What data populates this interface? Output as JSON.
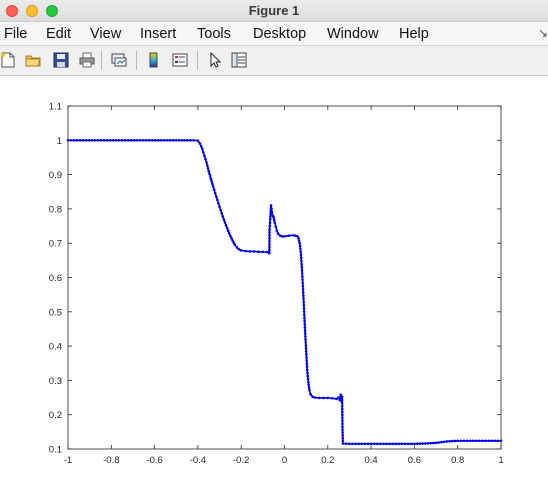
{
  "window": {
    "title": "Figure 1"
  },
  "menu": {
    "items": [
      {
        "id": "file",
        "label": "File"
      },
      {
        "id": "edit",
        "label": "Edit"
      },
      {
        "id": "view",
        "label": "View"
      },
      {
        "id": "insert",
        "label": "Insert"
      },
      {
        "id": "tools",
        "label": "Tools"
      },
      {
        "id": "desktop",
        "label": "Desktop"
      },
      {
        "id": "window",
        "label": "Window"
      },
      {
        "id": "help",
        "label": "Help"
      }
    ]
  },
  "toolbar": {
    "buttons": [
      {
        "id": "new-figure",
        "icon": "new-file-icon"
      },
      {
        "id": "open-file",
        "icon": "folder-icon"
      },
      {
        "id": "save",
        "icon": "save-icon"
      },
      {
        "id": "print",
        "icon": "print-icon"
      },
      {
        "id": "link-plot",
        "icon": "link-plot-icon"
      },
      {
        "id": "insert-colorbar",
        "icon": "colorbar-icon"
      },
      {
        "id": "insert-legend",
        "icon": "legend-icon"
      },
      {
        "id": "edit-plot",
        "icon": "pointer-icon"
      },
      {
        "id": "property-inspector",
        "icon": "property-inspector-icon"
      }
    ]
  },
  "colors": {
    "line": "#0000ee",
    "axes": "#262626",
    "background": "#ffffff"
  },
  "chart_data": {
    "type": "line",
    "title": "",
    "xlabel": "",
    "ylabel": "",
    "xlim": [
      -1,
      1
    ],
    "ylim": [
      0.1,
      1.1
    ],
    "xticks": [
      "-1",
      "-0.8",
      "-0.6",
      "-0.4",
      "-0.2",
      "0",
      "0.2",
      "0.4",
      "0.6",
      "0.8",
      "1"
    ],
    "yticks": [
      "0.1",
      "0.2",
      "0.3",
      "0.4",
      "0.5",
      "0.6",
      "0.7",
      "0.8",
      "0.9",
      "1",
      "1.1"
    ],
    "grid": false,
    "marker": "dot",
    "series": [
      {
        "name": "",
        "points": [
          [
            -1,
            1
          ],
          [
            -0.5,
            1
          ],
          [
            -0.45,
            1
          ],
          [
            -0.42,
            1
          ],
          [
            -0.4,
            0.999
          ],
          [
            -0.39,
            0.99
          ],
          [
            -0.38,
            0.975
          ],
          [
            -0.37,
            0.955
          ],
          [
            -0.36,
            0.935
          ],
          [
            -0.35,
            0.91
          ],
          [
            -0.34,
            0.888
          ],
          [
            -0.33,
            0.866
          ],
          [
            -0.32,
            0.846
          ],
          [
            -0.31,
            0.826
          ],
          [
            -0.3,
            0.806
          ],
          [
            -0.29,
            0.787
          ],
          [
            -0.28,
            0.769
          ],
          [
            -0.27,
            0.752
          ],
          [
            -0.26,
            0.736
          ],
          [
            -0.25,
            0.721
          ],
          [
            -0.24,
            0.708
          ],
          [
            -0.23,
            0.696
          ],
          [
            -0.22,
            0.688
          ],
          [
            -0.21,
            0.682
          ],
          [
            -0.2,
            0.679
          ],
          [
            -0.18,
            0.677
          ],
          [
            -0.16,
            0.676
          ],
          [
            -0.14,
            0.676
          ],
          [
            -0.12,
            0.675
          ],
          [
            -0.1,
            0.675
          ],
          [
            -0.08,
            0.674
          ],
          [
            -0.07,
            0.671
          ],
          [
            -0.069,
            0.74
          ],
          [
            -0.066,
            0.77
          ],
          [
            -0.062,
            0.81
          ],
          [
            -0.058,
            0.79
          ],
          [
            -0.054,
            0.78
          ],
          [
            -0.05,
            0.775
          ],
          [
            -0.045,
            0.76
          ],
          [
            -0.04,
            0.748
          ],
          [
            -0.035,
            0.736
          ],
          [
            -0.03,
            0.728
          ],
          [
            -0.02,
            0.722
          ],
          [
            -0.01,
            0.72
          ],
          [
            0,
            0.72
          ],
          [
            0.02,
            0.722
          ],
          [
            0.04,
            0.723
          ],
          [
            0.05,
            0.722
          ],
          [
            0.06,
            0.72
          ],
          [
            0.065,
            0.714
          ],
          [
            0.07,
            0.7
          ],
          [
            0.075,
            0.675
          ],
          [
            0.08,
            0.63
          ],
          [
            0.085,
            0.575
          ],
          [
            0.09,
            0.51
          ],
          [
            0.095,
            0.445
          ],
          [
            0.1,
            0.385
          ],
          [
            0.105,
            0.33
          ],
          [
            0.11,
            0.295
          ],
          [
            0.115,
            0.272
          ],
          [
            0.12,
            0.26
          ],
          [
            0.13,
            0.252
          ],
          [
            0.14,
            0.25
          ],
          [
            0.16,
            0.249
          ],
          [
            0.18,
            0.249
          ],
          [
            0.2,
            0.249
          ],
          [
            0.22,
            0.248
          ],
          [
            0.24,
            0.246
          ],
          [
            0.25,
            0.25
          ],
          [
            0.255,
            0.243
          ],
          [
            0.26,
            0.258
          ],
          [
            0.263,
            0.24
          ],
          [
            0.266,
            0.252
          ],
          [
            0.268,
            0.156
          ],
          [
            0.27,
            0.116
          ],
          [
            0.3,
            0.115
          ],
          [
            0.4,
            0.115
          ],
          [
            0.5,
            0.115
          ],
          [
            0.6,
            0.115
          ],
          [
            0.65,
            0.116
          ],
          [
            0.7,
            0.118
          ],
          [
            0.75,
            0.122
          ],
          [
            0.8,
            0.124
          ],
          [
            0.9,
            0.124
          ],
          [
            1,
            0.124
          ]
        ]
      }
    ]
  }
}
